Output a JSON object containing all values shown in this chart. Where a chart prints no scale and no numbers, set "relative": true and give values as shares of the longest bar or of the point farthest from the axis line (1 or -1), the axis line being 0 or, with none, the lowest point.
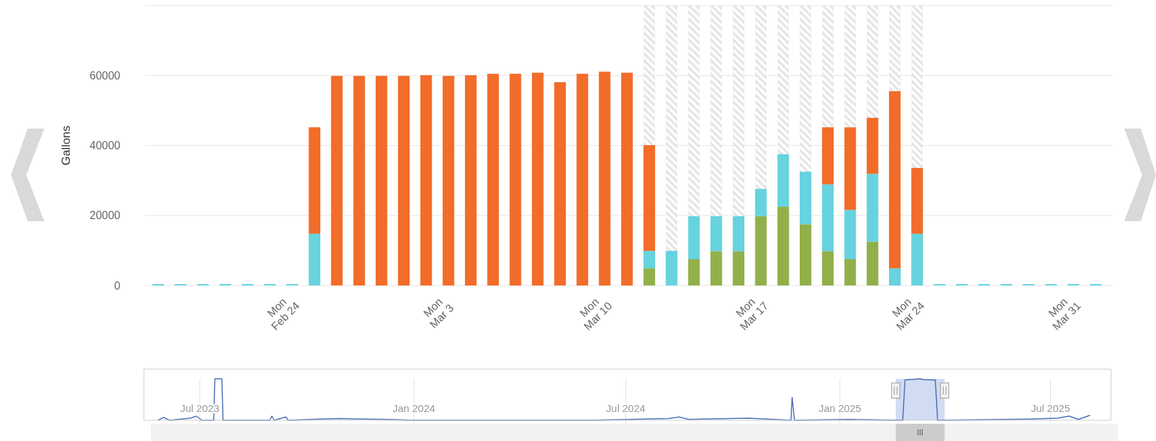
{
  "chart_data": [
    {
      "type": "bar",
      "ylabel": "Gallons",
      "stacked": true,
      "grid": "y",
      "x": [
        "2025-02-18T12:00",
        "2025-02-19T12:00",
        "2025-02-20T12:00",
        "2025-02-21T12:00",
        "2025-02-22T12:00",
        "2025-02-23T12:00",
        "2025-02-24T12:00",
        "2025-02-25T12:00",
        "2025-02-26T12:00",
        "2025-02-27T12:00",
        "2025-02-28T12:00",
        "2025-03-01T12:00",
        "2025-03-02T12:00",
        "2025-03-03T12:00",
        "2025-03-04T12:00",
        "2025-03-05T12:00",
        "2025-03-06T12:00",
        "2025-03-07T12:00",
        "2025-03-08T12:00",
        "2025-03-09T12:00",
        "2025-03-10T12:00",
        "2025-03-11T12:00",
        "2025-03-12T12:00",
        "2025-03-13T12:00",
        "2025-03-14T12:00",
        "2025-03-15T12:00",
        "2025-03-16T12:00",
        "2025-03-17T12:00",
        "2025-03-18T12:00",
        "2025-03-19T12:00",
        "2025-03-20T12:00",
        "2025-03-21T12:00",
        "2025-03-22T12:00",
        "2025-03-23T12:00",
        "2025-03-24T12:00",
        "2025-03-25T12:00",
        "2025-03-26T12:00",
        "2025-03-27T12:00",
        "2025-03-28T12:00",
        "2025-03-29T12:00",
        "2025-03-30T12:00",
        "2025-03-31T12:00",
        "2025-04-01T12:00"
      ],
      "series": [
        {
          "color": "#92b04a",
          "values": [
            null,
            null,
            null,
            null,
            null,
            null,
            null,
            null,
            null,
            null,
            null,
            null,
            null,
            null,
            null,
            null,
            null,
            null,
            null,
            null,
            null,
            null,
            4900,
            null,
            7500,
            9800,
            9800,
            19800,
            22500,
            17500,
            9800,
            7500,
            12500,
            null,
            null,
            null,
            null,
            null,
            null,
            null,
            null,
            null,
            null
          ]
        },
        {
          "color": "#66d3de",
          "values": [
            0,
            0,
            0,
            0,
            0,
            0,
            0,
            14800,
            null,
            null,
            null,
            null,
            null,
            null,
            null,
            null,
            null,
            null,
            null,
            null,
            null,
            null,
            5000,
            9900,
            12300,
            10000,
            10000,
            7800,
            15000,
            15000,
            19100,
            14100,
            19400,
            4900,
            14800,
            0,
            0,
            0,
            0,
            0,
            0,
            0,
            0
          ]
        },
        {
          "color": "#f26c2a",
          "values": [
            null,
            null,
            null,
            null,
            null,
            null,
            null,
            30400,
            59900,
            59900,
            59900,
            59900,
            60100,
            59900,
            60100,
            60500,
            60500,
            60800,
            58100,
            60500,
            61100,
            60800,
            30200,
            null,
            null,
            null,
            null,
            null,
            null,
            null,
            16300,
            23600,
            16000,
            50600,
            18800,
            null,
            null,
            null,
            null,
            null,
            null,
            null,
            null
          ]
        }
      ],
      "xlim": [
        "2025-02-17T22:00",
        "2025-04-02T06:00"
      ],
      "xticks": [
        {
          "value": "2025-02-24",
          "label": "Mon Feb 24"
        },
        {
          "value": "2025-03-03",
          "label": "Mon Mar 3"
        },
        {
          "value": "2025-03-10",
          "label": "Mon Mar 10"
        },
        {
          "value": "2025-03-17",
          "label": "Mon Mar 17"
        },
        {
          "value": "2025-03-24",
          "label": "Mon Mar 24"
        },
        {
          "value": "2025-03-31",
          "label": "Mon Mar 31"
        }
      ],
      "ylim": [
        0,
        80000
      ],
      "yticks": [
        0,
        20000,
        40000,
        60000,
        {
          "value": 80000,
          "label": null
        }
      ],
      "bands": [
        {
          "axis": "x",
          "from": "2025-03-12T06:00",
          "to": "2025-03-12T18:00",
          "color": "#e6e6e6"
        },
        {
          "axis": "x",
          "from": "2025-03-13T06:00",
          "to": "2025-03-13T18:00",
          "color": "#e6e6e6"
        },
        {
          "axis": "x",
          "from": "2025-03-14T06:00",
          "to": "2025-03-14T18:00",
          "color": "#e6e6e6"
        },
        {
          "axis": "x",
          "from": "2025-03-15T06:00",
          "to": "2025-03-15T18:00",
          "color": "#e6e6e6"
        },
        {
          "axis": "x",
          "from": "2025-03-16T06:00",
          "to": "2025-03-16T18:00",
          "color": "#e6e6e6"
        },
        {
          "axis": "x",
          "from": "2025-03-17T06:00",
          "to": "2025-03-17T18:00",
          "color": "#e6e6e6"
        },
        {
          "axis": "x",
          "from": "2025-03-18T06:00",
          "to": "2025-03-18T18:00",
          "color": "#e6e6e6"
        },
        {
          "axis": "x",
          "from": "2025-03-19T06:00",
          "to": "2025-03-19T18:00",
          "color": "#e6e6e6"
        },
        {
          "axis": "x",
          "from": "2025-03-20T06:00",
          "to": "2025-03-20T18:00",
          "color": "#e6e6e6"
        },
        {
          "axis": "x",
          "from": "2025-03-21T06:00",
          "to": "2025-03-21T18:00",
          "color": "#e6e6e6"
        },
        {
          "axis": "x",
          "from": "2025-03-22T06:00",
          "to": "2025-03-22T18:00",
          "color": "#e6e6e6"
        },
        {
          "axis": "x",
          "from": "2025-03-23T06:00",
          "to": "2025-03-23T18:00",
          "color": "#e6e6e6"
        },
        {
          "axis": "x",
          "from": "2025-03-24T06:00",
          "to": "2025-03-24T18:00",
          "color": "#e6e6e6"
        }
      ]
    },
    {
      "type": "line",
      "relative": true,
      "grid": "x",
      "tick_labels": "x",
      "x": [
        "2023-05-26",
        "2023-05-31",
        "2023-06-05",
        "2023-06-23",
        "2023-06-28",
        "2023-07-03",
        "2023-07-13",
        "2023-07-14",
        "2023-07-20",
        "2023-07-21",
        "2023-08-30",
        "2023-09-01",
        "2023-09-03",
        "2023-09-13",
        "2023-09-15",
        "2023-10-13",
        "2023-10-30",
        "2023-12-09",
        "2024-01-01",
        "2024-06-01",
        "2024-08-07",
        "2024-08-16",
        "2024-08-24",
        "2024-10-15",
        "2024-11-20",
        "2024-11-21",
        "2024-11-23",
        "2025-01-08",
        "2025-02-24",
        "2025-02-26",
        "2025-03-11",
        "2025-03-14",
        "2025-03-24",
        "2025-03-26",
        "2025-06-15",
        "2025-07-07",
        "2025-07-17",
        "2025-07-25",
        "2025-08-04"
      ],
      "series": [
        {
          "color": "#4a6fb5",
          "values": [
            0,
            0.07,
            0,
            0.05,
            0.1,
            0,
            0,
            1,
            1,
            0,
            0,
            0.1,
            0,
            0.08,
            0,
            0.03,
            0.04,
            0.02,
            0,
            0,
            0.04,
            0.08,
            0.02,
            0.05,
            0,
            0.55,
            0,
            0.02,
            0,
            0.97,
            1,
            0.98,
            0.97,
            0,
            0.03,
            0.05,
            0.1,
            0.02,
            0.12
          ]
        }
      ],
      "xlim": [
        "2023-05-14",
        "2025-08-22"
      ],
      "xticks": [
        {
          "value": "2023-07-01",
          "label": "Jul 2023"
        },
        {
          "value": "2024-01-01",
          "label": "Jan 2024"
        },
        {
          "value": "2024-07-01",
          "label": "Jul 2024"
        },
        {
          "value": "2025-01-01",
          "label": "Jan 2025"
        },
        {
          "value": "2025-07-01",
          "label": "Jul 2025"
        }
      ],
      "bands": [
        {
          "axis": "x",
          "from": "2025-02-18",
          "to": "2025-04-01",
          "color": "#c5d3ef"
        }
      ]
    }
  ]
}
